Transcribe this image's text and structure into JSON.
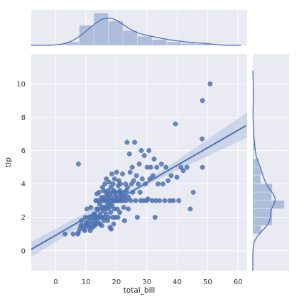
{
  "chart_data": {
    "type": "scatter",
    "xlabel": "total_bill",
    "ylabel": "tip",
    "xlim": [
      -8,
      63
    ],
    "ylim": [
      -1.2,
      11.8
    ],
    "x_ticks": [
      0,
      10,
      20,
      30,
      40,
      50,
      60
    ],
    "y_ticks": [
      0,
      2,
      4,
      6,
      8,
      10
    ],
    "grid": true,
    "colors": {
      "background": "#eaeaf2",
      "grid": "#ffffff",
      "marker": "#4c72b0",
      "line": "#4c72b0",
      "band": "#b3c3e0",
      "hist": "#a8b8da"
    },
    "regression": {
      "slope": 0.105,
      "intercept": 0.92,
      "ci": [
        [
          -8,
          0.45
        ],
        [
          10,
          0.32
        ],
        [
          20,
          0.18
        ],
        [
          30,
          0.15
        ],
        [
          40,
          0.3
        ],
        [
          50,
          0.5
        ],
        [
          63,
          0.75
        ]
      ]
    },
    "points": [
      [
        3.1,
        1.0
      ],
      [
        5.8,
        1.0
      ],
      [
        7.3,
        1.0
      ],
      [
        7.5,
        1.1
      ],
      [
        7.5,
        5.2
      ],
      [
        8.0,
        1.3
      ],
      [
        8.3,
        1.5
      ],
      [
        8.5,
        1.8
      ],
      [
        9.0,
        1.5
      ],
      [
        9.3,
        1.3
      ],
      [
        9.6,
        1.2
      ],
      [
        9.8,
        2.0
      ],
      [
        10.1,
        1.7
      ],
      [
        10.3,
        1.5
      ],
      [
        10.3,
        2.5
      ],
      [
        10.6,
        1.6
      ],
      [
        10.9,
        1.4
      ],
      [
        11.0,
        2.0
      ],
      [
        11.2,
        1.8
      ],
      [
        11.4,
        1.2
      ],
      [
        11.6,
        2.6
      ],
      [
        11.9,
        1.6
      ],
      [
        12.0,
        2.0
      ],
      [
        12.2,
        1.4
      ],
      [
        12.4,
        2.0
      ],
      [
        12.5,
        1.7
      ],
      [
        12.7,
        2.2
      ],
      [
        12.9,
        1.5
      ],
      [
        13.0,
        2.1
      ],
      [
        13.1,
        1.9
      ],
      [
        13.2,
        3.0
      ],
      [
        13.3,
        2.0
      ],
      [
        13.4,
        1.6
      ],
      [
        13.5,
        2.5
      ],
      [
        13.6,
        3.4
      ],
      [
        13.8,
        2.0
      ],
      [
        13.9,
        3.0
      ],
      [
        14.0,
        1.7
      ],
      [
        14.1,
        2.5
      ],
      [
        14.2,
        2.0
      ],
      [
        14.3,
        3.5
      ],
      [
        14.5,
        2.8
      ],
      [
        14.6,
        1.6
      ],
      [
        14.7,
        2.2
      ],
      [
        14.8,
        3.0
      ],
      [
        15.0,
        2.0
      ],
      [
        15.1,
        3.2
      ],
      [
        15.2,
        1.5
      ],
      [
        15.3,
        2.6
      ],
      [
        15.4,
        3.8
      ],
      [
        15.5,
        2.0
      ],
      [
        15.6,
        3.0
      ],
      [
        15.7,
        2.4
      ],
      [
        15.8,
        3.6
      ],
      [
        15.9,
        1.8
      ],
      [
        16.0,
        3.2
      ],
      [
        16.1,
        2.6
      ],
      [
        16.2,
        4.0
      ],
      [
        16.3,
        2.0
      ],
      [
        16.4,
        3.0
      ],
      [
        16.5,
        3.5
      ],
      [
        16.6,
        2.2
      ],
      [
        16.7,
        4.3
      ],
      [
        16.8,
        3.0
      ],
      [
        16.9,
        2.5
      ],
      [
        17.0,
        3.3
      ],
      [
        17.1,
        1.8
      ],
      [
        17.2,
        2.8
      ],
      [
        17.3,
        3.6
      ],
      [
        17.4,
        2.0
      ],
      [
        17.5,
        3.1
      ],
      [
        17.6,
        4.1
      ],
      [
        17.7,
        2.6
      ],
      [
        17.8,
        3.4
      ],
      [
        17.9,
        1.4
      ],
      [
        18.0,
        3.0
      ],
      [
        18.1,
        2.3
      ],
      [
        18.2,
        3.8
      ],
      [
        18.3,
        1.3
      ],
      [
        18.4,
        3.2
      ],
      [
        18.5,
        4.6
      ],
      [
        18.6,
        2.7
      ],
      [
        18.7,
        3.5
      ],
      [
        18.8,
        2.0
      ],
      [
        18.9,
        4.0
      ],
      [
        19.0,
        3.0
      ],
      [
        19.1,
        1.6
      ],
      [
        19.2,
        3.6
      ],
      [
        19.3,
        2.5
      ],
      [
        19.4,
        4.3
      ],
      [
        19.5,
        3.0
      ],
      [
        19.6,
        2.0
      ],
      [
        19.7,
        3.3
      ],
      [
        19.8,
        3.5
      ],
      [
        20.0,
        3.0
      ],
      [
        20.1,
        4.7
      ],
      [
        20.3,
        2.5
      ],
      [
        20.4,
        3.2
      ],
      [
        20.5,
        2.0
      ],
      [
        20.6,
        3.9
      ],
      [
        20.7,
        3.0
      ],
      [
        20.8,
        4.2
      ],
      [
        20.9,
        3.5
      ],
      [
        21.0,
        3.0
      ],
      [
        21.1,
        2.3
      ],
      [
        21.2,
        3.6
      ],
      [
        21.3,
        4.0
      ],
      [
        21.4,
        3.0
      ],
      [
        21.5,
        3.4
      ],
      [
        21.7,
        3.3
      ],
      [
        22.0,
        4.6
      ],
      [
        22.2,
        3.0
      ],
      [
        22.4,
        2.6
      ],
      [
        22.5,
        3.5
      ],
      [
        22.7,
        1.8
      ],
      [
        22.8,
        3.2
      ],
      [
        23.0,
        4.0
      ],
      [
        23.1,
        3.0
      ],
      [
        23.3,
        3.6
      ],
      [
        23.5,
        6.5
      ],
      [
        23.7,
        3.8
      ],
      [
        23.9,
        2.5
      ],
      [
        24.0,
        3.2
      ],
      [
        24.3,
        5.8
      ],
      [
        24.5,
        4.7
      ],
      [
        24.7,
        3.0
      ],
      [
        25.0,
        4.0
      ],
      [
        25.2,
        5.0
      ],
      [
        25.4,
        3.5
      ],
      [
        25.7,
        4.2
      ],
      [
        26.0,
        6.5
      ],
      [
        26.3,
        3.0
      ],
      [
        26.6,
        4.5
      ],
      [
        26.9,
        2.0
      ],
      [
        27.2,
        4.0
      ],
      [
        27.5,
        5.2
      ],
      [
        27.8,
        3.5
      ],
      [
        28.0,
        3.0
      ],
      [
        28.2,
        6.0
      ],
      [
        28.5,
        4.3
      ],
      [
        28.9,
        3.0
      ],
      [
        29.2,
        5.7
      ],
      [
        29.5,
        4.0
      ],
      [
        29.9,
        3.0
      ],
      [
        30.1,
        5.0
      ],
      [
        30.4,
        3.1
      ],
      [
        30.7,
        6.0
      ],
      [
        31.0,
        4.3
      ],
      [
        31.3,
        5.0
      ],
      [
        31.7,
        3.0
      ],
      [
        32.0,
        4.5
      ],
      [
        32.4,
        5.5
      ],
      [
        32.7,
        2.0
      ],
      [
        32.9,
        3.0
      ],
      [
        33.3,
        5.0
      ],
      [
        33.7,
        4.0
      ],
      [
        34.2,
        3.0
      ],
      [
        34.8,
        5.2
      ],
      [
        35.3,
        4.0
      ],
      [
        35.9,
        3.0
      ],
      [
        36.3,
        5.0
      ],
      [
        37.0,
        4.2
      ],
      [
        37.6,
        3.0
      ],
      [
        38.0,
        4.5
      ],
      [
        38.7,
        3.0
      ],
      [
        39.4,
        7.6
      ],
      [
        39.9,
        4.4
      ],
      [
        40.5,
        3.0
      ],
      [
        41.2,
        5.0
      ],
      [
        42.0,
        4.8
      ],
      [
        43.2,
        5.0
      ],
      [
        44.3,
        2.5
      ],
      [
        45.3,
        3.5
      ],
      [
        48.3,
        9.0
      ],
      [
        48.3,
        5.0
      ],
      [
        48.2,
        6.7
      ],
      [
        50.8,
        10.0
      ]
    ],
    "hist_x": {
      "bins": [
        3,
        7.8,
        12.6,
        17.4,
        22.2,
        27,
        31.8,
        36.6,
        41.4,
        46.2,
        51
      ],
      "counts": [
        7,
        42,
        68,
        51,
        31,
        19,
        12,
        7,
        4,
        3
      ]
    },
    "hist_y": {
      "bins": [
        1,
        1.5,
        2,
        2.5,
        3,
        3.5,
        4,
        4.5,
        5,
        5.5,
        6,
        6.5,
        7,
        7.5,
        8,
        8.5,
        9,
        9.5,
        10
      ],
      "counts": [
        14,
        33,
        33,
        54,
        32,
        33,
        13,
        14,
        10,
        1,
        4,
        1,
        0,
        1,
        0,
        0,
        1,
        0
      ]
    }
  }
}
